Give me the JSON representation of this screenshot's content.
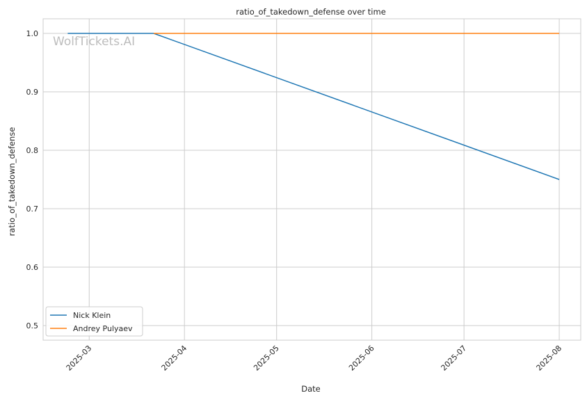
{
  "chart_data": {
    "type": "line",
    "title": "ratio_of_takedown_defense over time",
    "xlabel": "Date",
    "ylabel": "ratio_of_takedown_defense",
    "watermark": "WolfTickets.AI",
    "x_ticks": [
      "2025-03",
      "2025-04",
      "2025-05",
      "2025-06",
      "2025-07",
      "2025-08"
    ],
    "y_ticks": [
      "0.5",
      "0.6",
      "0.7",
      "0.8",
      "0.9",
      "1.0"
    ],
    "xlim": [
      "2025-02-14",
      "2025-08-08"
    ],
    "ylim": [
      0.475,
      1.025
    ],
    "grid": true,
    "legend_position": "lower-left",
    "series": [
      {
        "name": "Nick Klein",
        "color": "#1f77b4",
        "points": [
          {
            "x": "2025-02-22",
            "y": 1.0
          },
          {
            "x": "2025-03-22",
            "y": 1.0
          },
          {
            "x": "2025-08-01",
            "y": 0.75
          }
        ]
      },
      {
        "name": "Andrey Pulyaev",
        "color": "#ff7f0e",
        "points": [
          {
            "x": "2025-03-22",
            "y": 1.0
          },
          {
            "x": "2025-08-01",
            "y": 1.0
          }
        ]
      }
    ]
  }
}
